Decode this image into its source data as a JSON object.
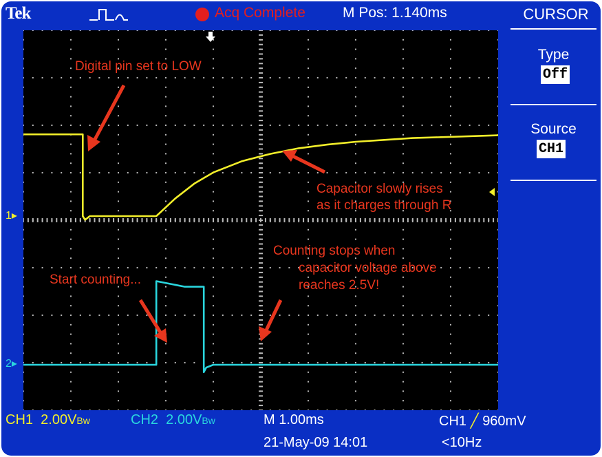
{
  "header": {
    "brand": "Tek",
    "acquisition_status": "Acq Complete",
    "horizontal_position": "M Pos: 1.140ms"
  },
  "side_menu": {
    "title": "CURSOR",
    "items": [
      {
        "label": "Type",
        "value": "Off"
      },
      {
        "label": "Source",
        "value": "CH1"
      }
    ]
  },
  "channel_markers": {
    "ch1": "1",
    "ch2": "2"
  },
  "annotations": {
    "digital_low": "Digital pin set to LOW",
    "capacitor_rises_line1": "Capacitor slowly rises",
    "capacitor_rises_line2": "as it charges through R",
    "counting_stops_line1": "Counting stops when",
    "counting_stops_line2": "capacitor voltage above",
    "counting_stops_line3": "reaches 2.5V!",
    "start_counting": "Start counting..."
  },
  "status_bar": {
    "ch1_label": "CH1",
    "ch1_scale": "2.00V",
    "ch1_coupling": "Bw",
    "ch2_label": "CH2",
    "ch2_scale": "2.00V",
    "ch2_coupling": "Bw",
    "timebase": "M 1.00ms",
    "trigger_source": "CH1",
    "trigger_slope_symbol": "╱",
    "trigger_level": "960mV",
    "datetime": "21-May-09 14:01",
    "frequency": "<10Hz"
  },
  "colors": {
    "bezel": "#0a2fc4",
    "screen": "#000000",
    "ch1_trace": "#f2ee2a",
    "ch2_trace": "#2ad6de",
    "acquisition": "#e31e1e",
    "annotation": "#e8361e"
  },
  "chart_data": {
    "type": "line",
    "xlabel": "",
    "ylabel": "",
    "x_unit": "ms",
    "y_unit": "V",
    "xlim": [
      0,
      10
    ],
    "ylim": [
      -8,
      8
    ],
    "grid": true,
    "series": [
      {
        "name": "CH1",
        "x": [
          0.0,
          1.25,
          1.25,
          1.3,
          1.4,
          2.8,
          3.2,
          3.6,
          4.0,
          4.6,
          5.2,
          5.8,
          6.4,
          7.0,
          7.6,
          8.2,
          8.8,
          9.4,
          10.0
        ],
        "y": [
          4.4,
          4.4,
          0.0,
          -0.2,
          0.0,
          0.0,
          0.95,
          1.75,
          2.35,
          2.95,
          3.35,
          3.65,
          3.85,
          4.0,
          4.1,
          4.2,
          4.25,
          4.3,
          4.35
        ]
      },
      {
        "name": "CH2",
        "x": [
          0.0,
          2.8,
          2.8,
          3.4,
          3.8,
          3.8,
          3.85,
          4.0,
          10.0
        ],
        "y": [
          0.0,
          0.0,
          4.5,
          4.2,
          4.2,
          -0.4,
          -0.15,
          0.0,
          0.0
        ]
      }
    ]
  }
}
